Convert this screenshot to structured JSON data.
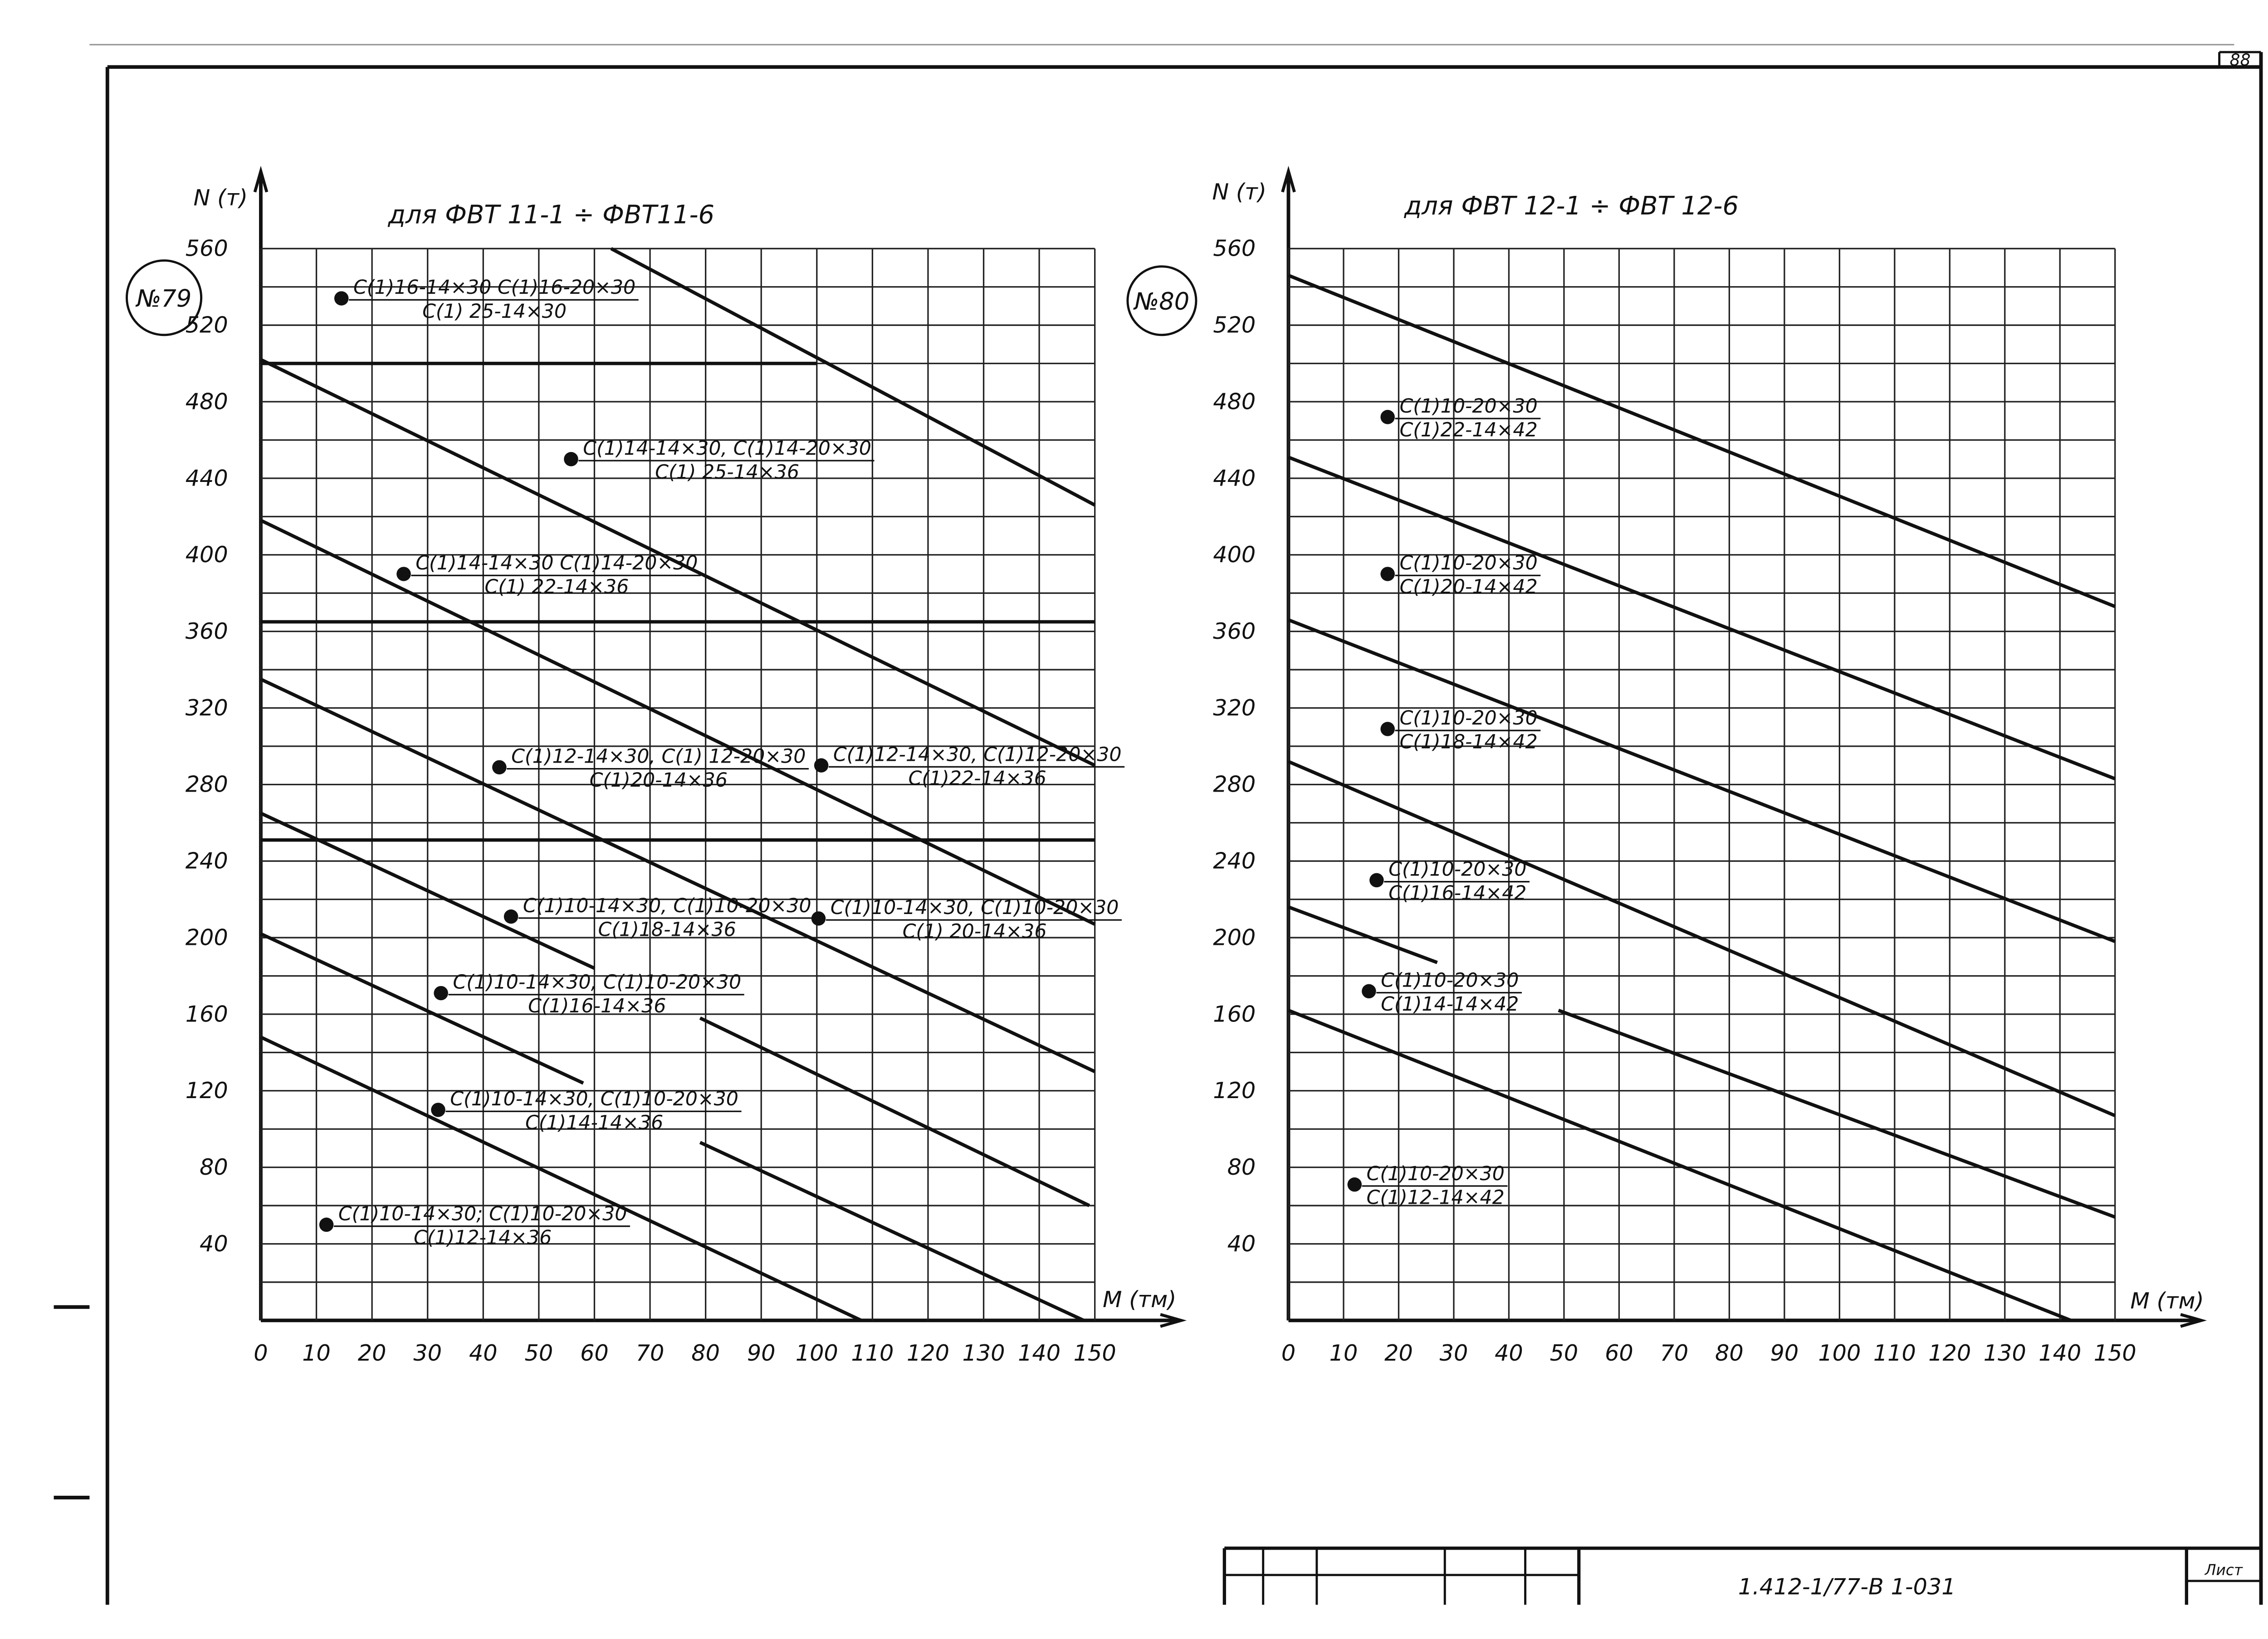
{
  "chart_data": [
    {
      "type": "line",
      "title": "для ФВТ 11-1 ÷ ФВТ11-6",
      "badge": "№79",
      "y_label": "N (т)",
      "x_label": "M (тм)",
      "xlim": [
        0,
        150
      ],
      "xticks": [
        0,
        10,
        20,
        30,
        40,
        50,
        60,
        70,
        80,
        90,
        100,
        110,
        120,
        130,
        140,
        150
      ],
      "ylim": [
        0,
        560
      ],
      "yticks": [
        40,
        80,
        120,
        160,
        200,
        240,
        280,
        320,
        360,
        400,
        440,
        480,
        520,
        560
      ],
      "yminorticks": [
        20,
        60,
        100,
        140,
        180,
        220,
        260,
        300,
        340,
        380,
        420,
        460,
        500,
        540
      ],
      "grid": true,
      "lines": [
        {
          "x": [
            63,
            150
          ],
          "y": [
            560,
            426
          ]
        },
        {
          "x": [
            0,
            150
          ],
          "y": [
            502,
            290
          ]
        },
        {
          "x": [
            0,
            100
          ],
          "y": [
            500,
            500
          ]
        },
        {
          "x": [
            0,
            150
          ],
          "y": [
            365,
            365
          ]
        },
        {
          "x": [
            0,
            150
          ],
          "y": [
            418,
            207
          ]
        },
        {
          "x": [
            0,
            150
          ],
          "y": [
            335,
            130
          ]
        },
        {
          "x": [
            0,
            150
          ],
          "y": [
            251,
            251
          ]
        },
        {
          "x": [
            0,
            60,
            null,
            79,
            149
          ],
          "y": [
            265,
            184,
            null,
            158,
            60
          ]
        },
        {
          "x": [
            0,
            58,
            null,
            79,
            148
          ],
          "y": [
            202,
            124,
            null,
            93,
            0
          ]
        },
        {
          "x": [
            0,
            108
          ],
          "y": [
            148,
            0
          ]
        }
      ],
      "points": [
        {
          "x": 14.5,
          "y": 534,
          "label": [
            "С(1)16-14×30 С(1)16-20×30",
            "С(1) 25-14×30"
          ]
        },
        {
          "x": 55.8,
          "y": 450,
          "label": [
            "С(1)14-14×30, С(1)14-20×30",
            "С(1) 25-14×36"
          ]
        },
        {
          "x": 25.7,
          "y": 390,
          "label": [
            "С(1)14-14×30 С(1)14-20×30",
            "С(1) 22-14×36"
          ]
        },
        {
          "x": 42.9,
          "y": 289,
          "label": [
            "С(1)12-14×30, С(1) 12-20×30",
            "С(1)20-14×36"
          ]
        },
        {
          "x": 100.8,
          "y": 290,
          "label": [
            "С(1)12-14×30, С(1)12-20×30",
            "С(1)22-14×36"
          ]
        },
        {
          "x": 45,
          "y": 211,
          "label": [
            "С(1)10-14×30, С(1)10-20×30",
            "С(1)18-14×36"
          ]
        },
        {
          "x": 100.3,
          "y": 210,
          "label": [
            "С(1)10-14×30, С(1)10-20×30",
            "С(1) 20-14×36"
          ]
        },
        {
          "x": 32.4,
          "y": 171,
          "label": [
            "С(1)10-14×30, С(1)10-20×30",
            "С(1)16-14×36"
          ]
        },
        {
          "x": 31.9,
          "y": 110,
          "label": [
            "С(1)10-14×30, С(1)10-20×30",
            "С(1)14-14×36"
          ]
        },
        {
          "x": 11.8,
          "y": 50,
          "label": [
            "С(1)10-14×30; С(1)10-20×30",
            "С(1)12-14×36"
          ]
        }
      ]
    },
    {
      "type": "line",
      "title": "для ФВТ 12-1 ÷ ФВТ 12-6",
      "badge": "№80",
      "y_label": "N (т)",
      "x_label": "M (тм)",
      "xlim": [
        0,
        150
      ],
      "xticks": [
        0,
        10,
        20,
        30,
        40,
        50,
        60,
        70,
        80,
        90,
        100,
        110,
        120,
        130,
        140,
        150
      ],
      "ylim": [
        0,
        560
      ],
      "yticks": [
        40,
        80,
        120,
        160,
        200,
        240,
        280,
        320,
        360,
        400,
        440,
        480,
        520,
        560
      ],
      "yminorticks": [
        20,
        60,
        100,
        140,
        180,
        220,
        260,
        300,
        340,
        380,
        420,
        460,
        500,
        540
      ],
      "grid": true,
      "lines": [
        {
          "x": [
            0,
            150
          ],
          "y": [
            546,
            373
          ]
        },
        {
          "x": [
            0,
            150
          ],
          "y": [
            451,
            283
          ]
        },
        {
          "x": [
            0,
            150
          ],
          "y": [
            366,
            198
          ]
        },
        {
          "x": [
            0,
            150
          ],
          "y": [
            292,
            107
          ]
        },
        {
          "x": [
            0,
            27,
            null,
            49,
            150
          ],
          "y": [
            216,
            187,
            null,
            162,
            54
          ]
        },
        {
          "x": [
            0,
            142
          ],
          "y": [
            162,
            0
          ]
        }
      ],
      "points": [
        {
          "x": 18,
          "y": 472,
          "label": [
            "С(1)10-20×30",
            "С(1)22-14×42"
          ]
        },
        {
          "x": 18,
          "y": 390,
          "label": [
            "С(1)10-20×30",
            "С(1)20-14×42"
          ]
        },
        {
          "x": 18,
          "y": 309,
          "label": [
            "С(1)10-20×30",
            "С(1)18-14×42"
          ]
        },
        {
          "x": 16,
          "y": 230,
          "label": [
            "С(1)10-20×30",
            "С(1)16-14×42"
          ]
        },
        {
          "x": 14.6,
          "y": 172,
          "label": [
            "С(1)10-20×30",
            "С(1)14-14×42"
          ]
        },
        {
          "x": 12,
          "y": 71,
          "label": [
            "С(1)10-20×30",
            "С(1)12-14×42"
          ]
        }
      ]
    }
  ],
  "sheet": {
    "number": "88",
    "code": "1.412-1/77-В 1-031",
    "label": "Лист"
  }
}
